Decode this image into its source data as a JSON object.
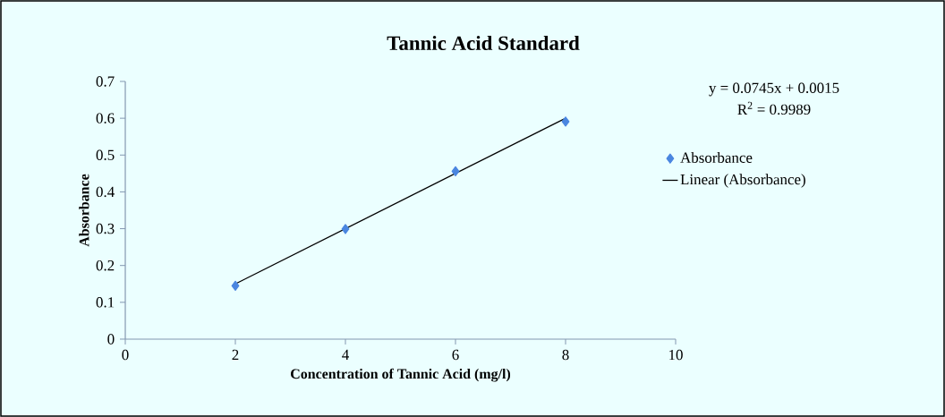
{
  "chart_data": {
    "type": "scatter",
    "title": "Tannic Acid Standard",
    "xlabel": "Concentration of Tannic Acid (mg/l)",
    "ylabel": "Absorbance",
    "annotations": [
      "y = 0.0745x + 0.0015",
      "R$^{2}$ = 0.9989"
    ],
    "series": [
      {
        "name": "Absorbance",
        "color": "#4a86e0",
        "marker": "diamond",
        "x": [
          2,
          4,
          6,
          8
        ],
        "values": [
          0.145,
          0.299,
          0.456,
          0.591
        ]
      },
      {
        "name": "Linear (Absorbance)",
        "type": "line",
        "color": "#000000",
        "marker": "none",
        "line_style": "solid",
        "x": [
          2,
          8
        ],
        "values": [
          0.15,
          0.6
        ]
      }
    ],
    "xlim": [
      0,
      10
    ],
    "ylim": [
      0,
      0.7
    ],
    "xticks": [
      0,
      2,
      4,
      6,
      8,
      10
    ],
    "yticks": [
      0,
      0.1,
      0.2,
      0.3,
      0.4,
      0.5,
      0.6,
      0.7
    ],
    "grid": false,
    "legend": "right"
  }
}
